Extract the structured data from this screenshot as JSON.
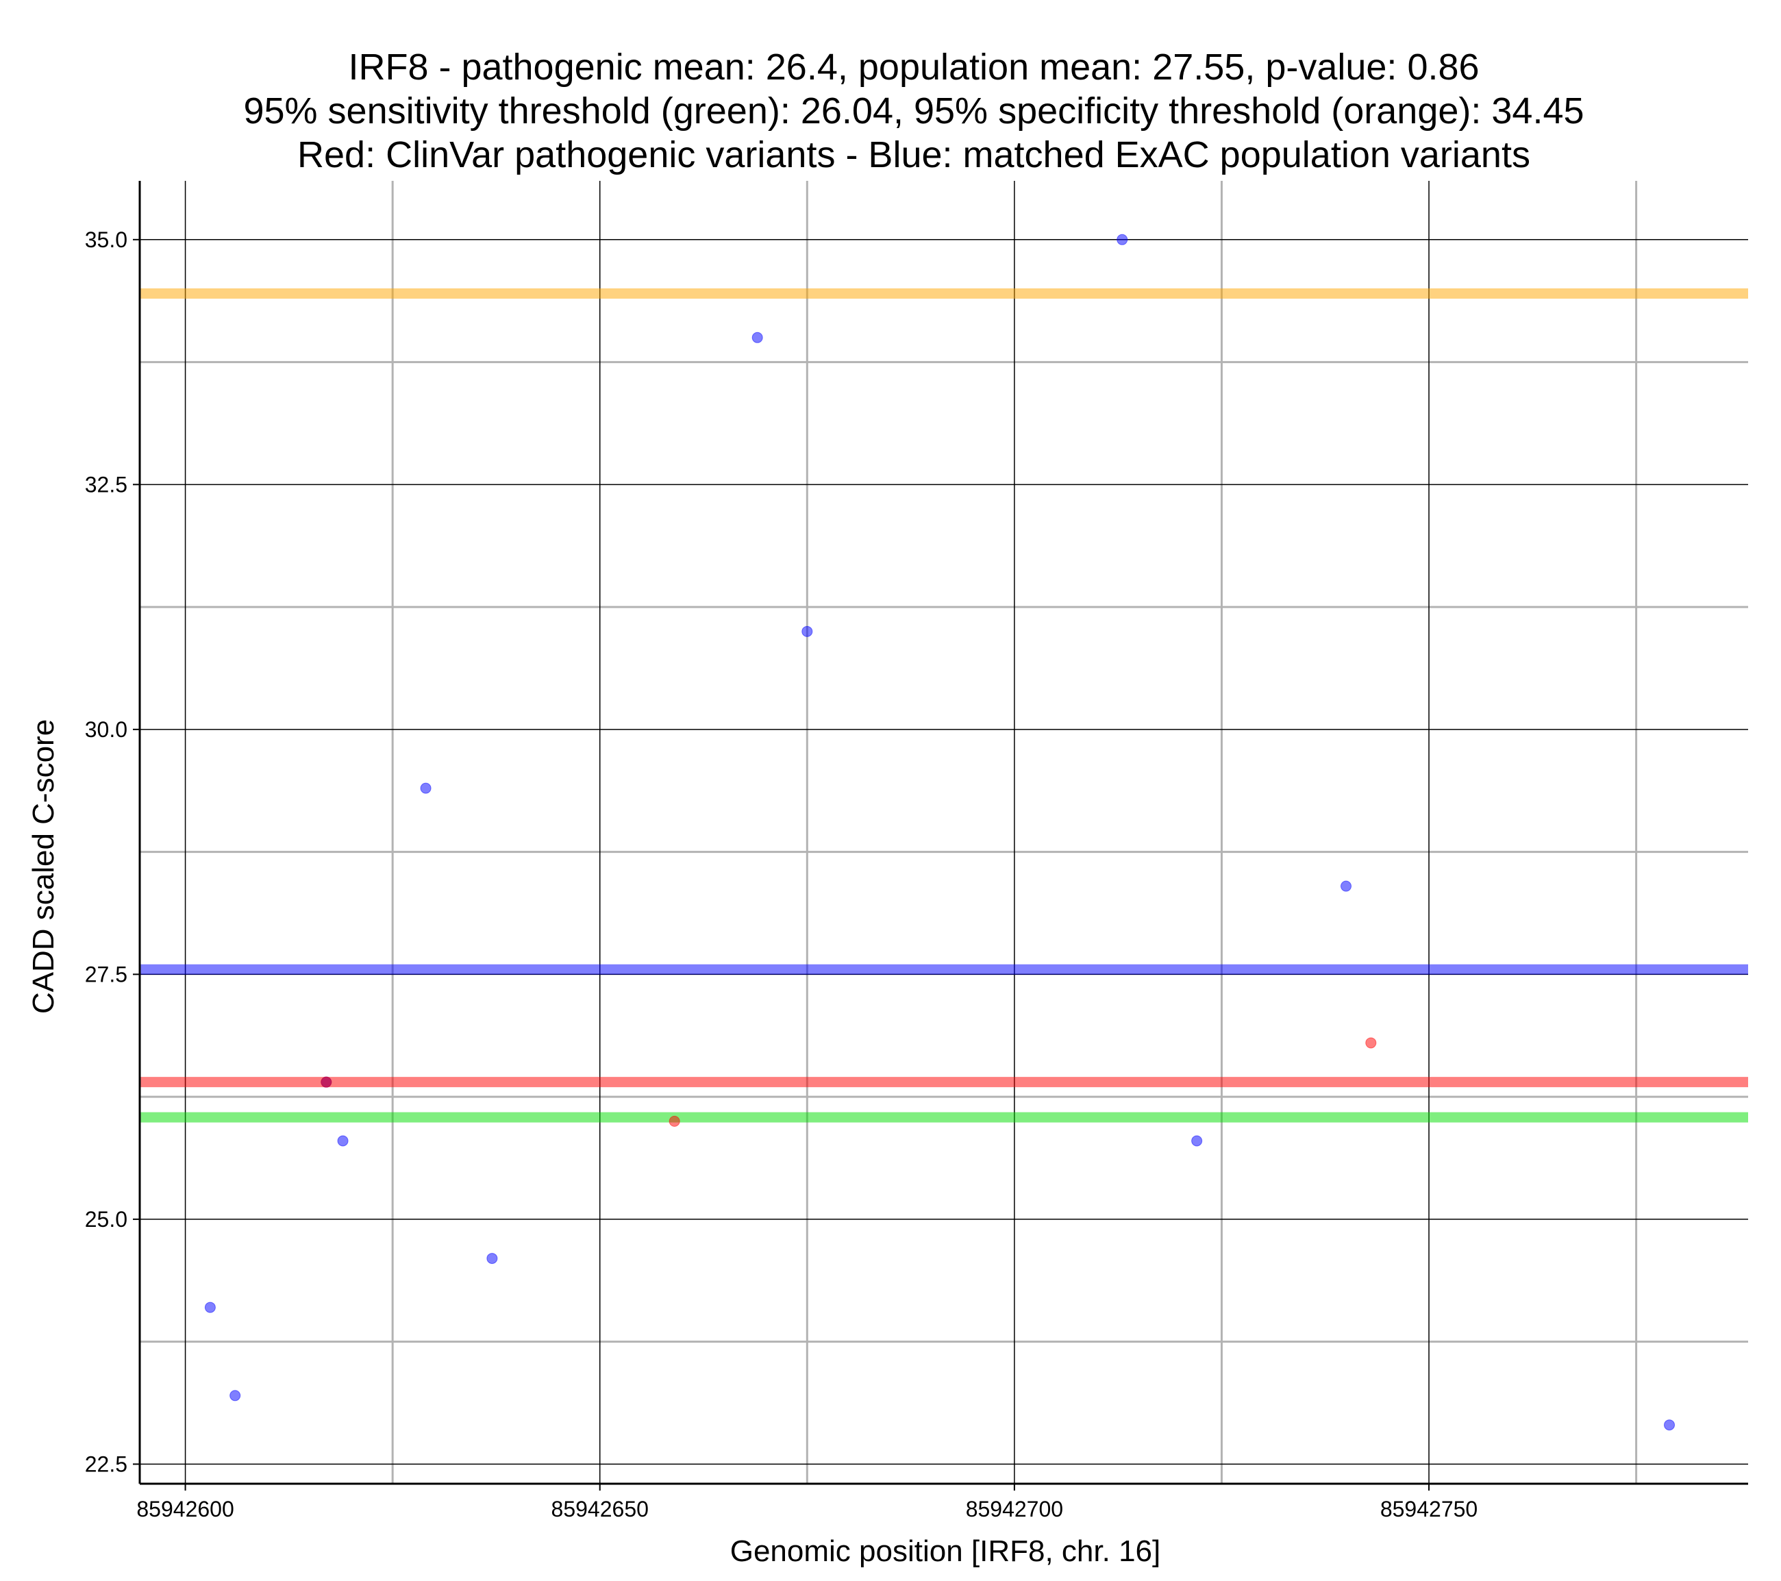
{
  "chart_data": {
    "type": "scatter",
    "title_lines": [
      "IRF8 - pathogenic mean: 26.4, population mean: 27.55, p-value: 0.86",
      "95% sensitivity threshold (green): 26.04, 95% specificity threshold (orange): 34.45",
      "Red: ClinVar pathogenic variants - Blue: matched ExAC population variants"
    ],
    "xlabel": "Genomic position [IRF8, chr. 16]",
    "ylabel": "CADD scaled C-score",
    "xlim": [
      85942594.5,
      85942788.5
    ],
    "ylim": [
      22.3,
      35.6
    ],
    "x_major_ticks": [
      85942600,
      85942650,
      85942700,
      85942750
    ],
    "x_tick_labels": [
      "85942600",
      "85942650",
      "85942700",
      "85942750"
    ],
    "x_minor_ticks": [
      85942625,
      85942675,
      85942725,
      85942775
    ],
    "y_major_ticks": [
      22.5,
      25.0,
      27.5,
      30.0,
      32.5,
      35.0
    ],
    "y_tick_labels": [
      "22.5",
      "25.0",
      "27.5",
      "30.0",
      "32.5",
      "35.0"
    ],
    "y_minor_ticks": [
      23.75,
      26.25,
      28.75,
      31.25,
      33.75
    ],
    "colors": {
      "population": "#0000ff",
      "pathogenic": "#ff0000",
      "sensitivity": "#00dd00",
      "specificity": "#ffa500",
      "major_grid": "#000000",
      "minor_grid": "#b3b3b3"
    },
    "hlines": [
      {
        "name": "specificity-threshold",
        "value": 34.45,
        "color": "#ffa500"
      },
      {
        "name": "population-mean",
        "value": 27.55,
        "color": "#0000ff"
      },
      {
        "name": "pathogenic-mean",
        "value": 26.4,
        "color": "#ff0000"
      },
      {
        "name": "sensitivity-threshold",
        "value": 26.04,
        "color": "#00dd00"
      }
    ],
    "series": [
      {
        "name": "matched ExAC population variants",
        "color": "#0000ff",
        "x": [
          85942603,
          85942606,
          85942617,
          85942619,
          85942629,
          85942637,
          85942669,
          85942675,
          85942713,
          85942722,
          85942740,
          85942779
        ],
        "y": [
          24.1,
          23.2,
          26.4,
          25.8,
          29.4,
          24.6,
          34.0,
          31.0,
          35.0,
          25.8,
          28.4,
          22.9
        ]
      },
      {
        "name": "ClinVar pathogenic variants",
        "color": "#ff0000",
        "x": [
          85942617,
          85942659,
          85942743
        ],
        "y": [
          26.4,
          26.0,
          26.8
        ]
      }
    ]
  }
}
